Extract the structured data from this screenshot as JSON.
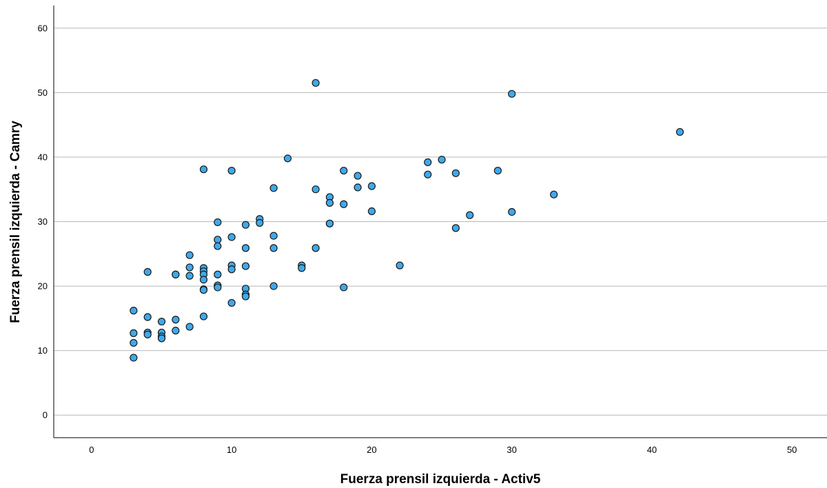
{
  "chart_data": {
    "type": "scatter",
    "xlabel": "Fuerza prensil izquierda - Activ5",
    "ylabel": "Fuerza prensil izquierda - Camry",
    "xlim": [
      -2.7,
      52.5
    ],
    "ylim": [
      -3.5,
      63.5
    ],
    "x_ticks": [
      0,
      10,
      20,
      30,
      40,
      50
    ],
    "y_ticks": [
      0,
      10,
      20,
      30,
      40,
      50,
      60
    ],
    "grid": "horizontal",
    "colors": {
      "marker_fill": "#3fa9ea",
      "marker_stroke": "#1a1a1a",
      "grid": "#b8b8b8",
      "axis": "#000000"
    },
    "points": [
      {
        "x": 3,
        "y": 16.2
      },
      {
        "x": 3,
        "y": 12.7
      },
      {
        "x": 3,
        "y": 11.2
      },
      {
        "x": 3,
        "y": 8.9
      },
      {
        "x": 4,
        "y": 22.2
      },
      {
        "x": 4,
        "y": 15.2
      },
      {
        "x": 4,
        "y": 12.8
      },
      {
        "x": 4,
        "y": 12.5
      },
      {
        "x": 5,
        "y": 14.5
      },
      {
        "x": 5,
        "y": 12.8
      },
      {
        "x": 5,
        "y": 12.2
      },
      {
        "x": 5,
        "y": 11.9
      },
      {
        "x": 6,
        "y": 21.8
      },
      {
        "x": 6,
        "y": 21.8
      },
      {
        "x": 6,
        "y": 14.8
      },
      {
        "x": 6,
        "y": 13.1
      },
      {
        "x": 7,
        "y": 24.8
      },
      {
        "x": 7,
        "y": 22.9
      },
      {
        "x": 7,
        "y": 21.6
      },
      {
        "x": 7,
        "y": 13.7
      },
      {
        "x": 8,
        "y": 38.1
      },
      {
        "x": 8,
        "y": 22.8
      },
      {
        "x": 8,
        "y": 22.3
      },
      {
        "x": 8,
        "y": 21.8
      },
      {
        "x": 8,
        "y": 21.0
      },
      {
        "x": 8,
        "y": 19.5
      },
      {
        "x": 8,
        "y": 19.4
      },
      {
        "x": 8,
        "y": 15.3
      },
      {
        "x": 9,
        "y": 29.9
      },
      {
        "x": 9,
        "y": 27.2
      },
      {
        "x": 9,
        "y": 26.2
      },
      {
        "x": 9,
        "y": 21.8
      },
      {
        "x": 9,
        "y": 20.1
      },
      {
        "x": 9,
        "y": 19.8
      },
      {
        "x": 10,
        "y": 37.9
      },
      {
        "x": 10,
        "y": 27.6
      },
      {
        "x": 10,
        "y": 23.2
      },
      {
        "x": 10,
        "y": 22.6
      },
      {
        "x": 10,
        "y": 17.4
      },
      {
        "x": 11,
        "y": 29.5
      },
      {
        "x": 11,
        "y": 25.9
      },
      {
        "x": 11,
        "y": 23.1
      },
      {
        "x": 11,
        "y": 19.6
      },
      {
        "x": 11,
        "y": 18.7
      },
      {
        "x": 11,
        "y": 18.4
      },
      {
        "x": 12,
        "y": 30.4
      },
      {
        "x": 12,
        "y": 29.8
      },
      {
        "x": 13,
        "y": 35.2
      },
      {
        "x": 13,
        "y": 27.8
      },
      {
        "x": 13,
        "y": 25.9
      },
      {
        "x": 13,
        "y": 20.0
      },
      {
        "x": 14,
        "y": 39.8
      },
      {
        "x": 15,
        "y": 23.2
      },
      {
        "x": 15,
        "y": 22.8
      },
      {
        "x": 16,
        "y": 51.5
      },
      {
        "x": 16,
        "y": 35.0
      },
      {
        "x": 16,
        "y": 25.9
      },
      {
        "x": 17,
        "y": 33.8
      },
      {
        "x": 17,
        "y": 32.9
      },
      {
        "x": 17,
        "y": 29.7
      },
      {
        "x": 17,
        "y": 29.7
      },
      {
        "x": 18,
        "y": 37.9
      },
      {
        "x": 18,
        "y": 32.7
      },
      {
        "x": 18,
        "y": 19.8
      },
      {
        "x": 19,
        "y": 37.1
      },
      {
        "x": 19,
        "y": 35.3
      },
      {
        "x": 20,
        "y": 35.5
      },
      {
        "x": 20,
        "y": 31.6
      },
      {
        "x": 22,
        "y": 23.2
      },
      {
        "x": 24,
        "y": 39.2
      },
      {
        "x": 24,
        "y": 37.3
      },
      {
        "x": 25,
        "y": 39.6
      },
      {
        "x": 26,
        "y": 37.5
      },
      {
        "x": 26,
        "y": 29.0
      },
      {
        "x": 27,
        "y": 31.0
      },
      {
        "x": 29,
        "y": 37.9
      },
      {
        "x": 30,
        "y": 49.8
      },
      {
        "x": 30,
        "y": 31.5
      },
      {
        "x": 33,
        "y": 34.2
      },
      {
        "x": 42,
        "y": 43.9
      }
    ]
  }
}
